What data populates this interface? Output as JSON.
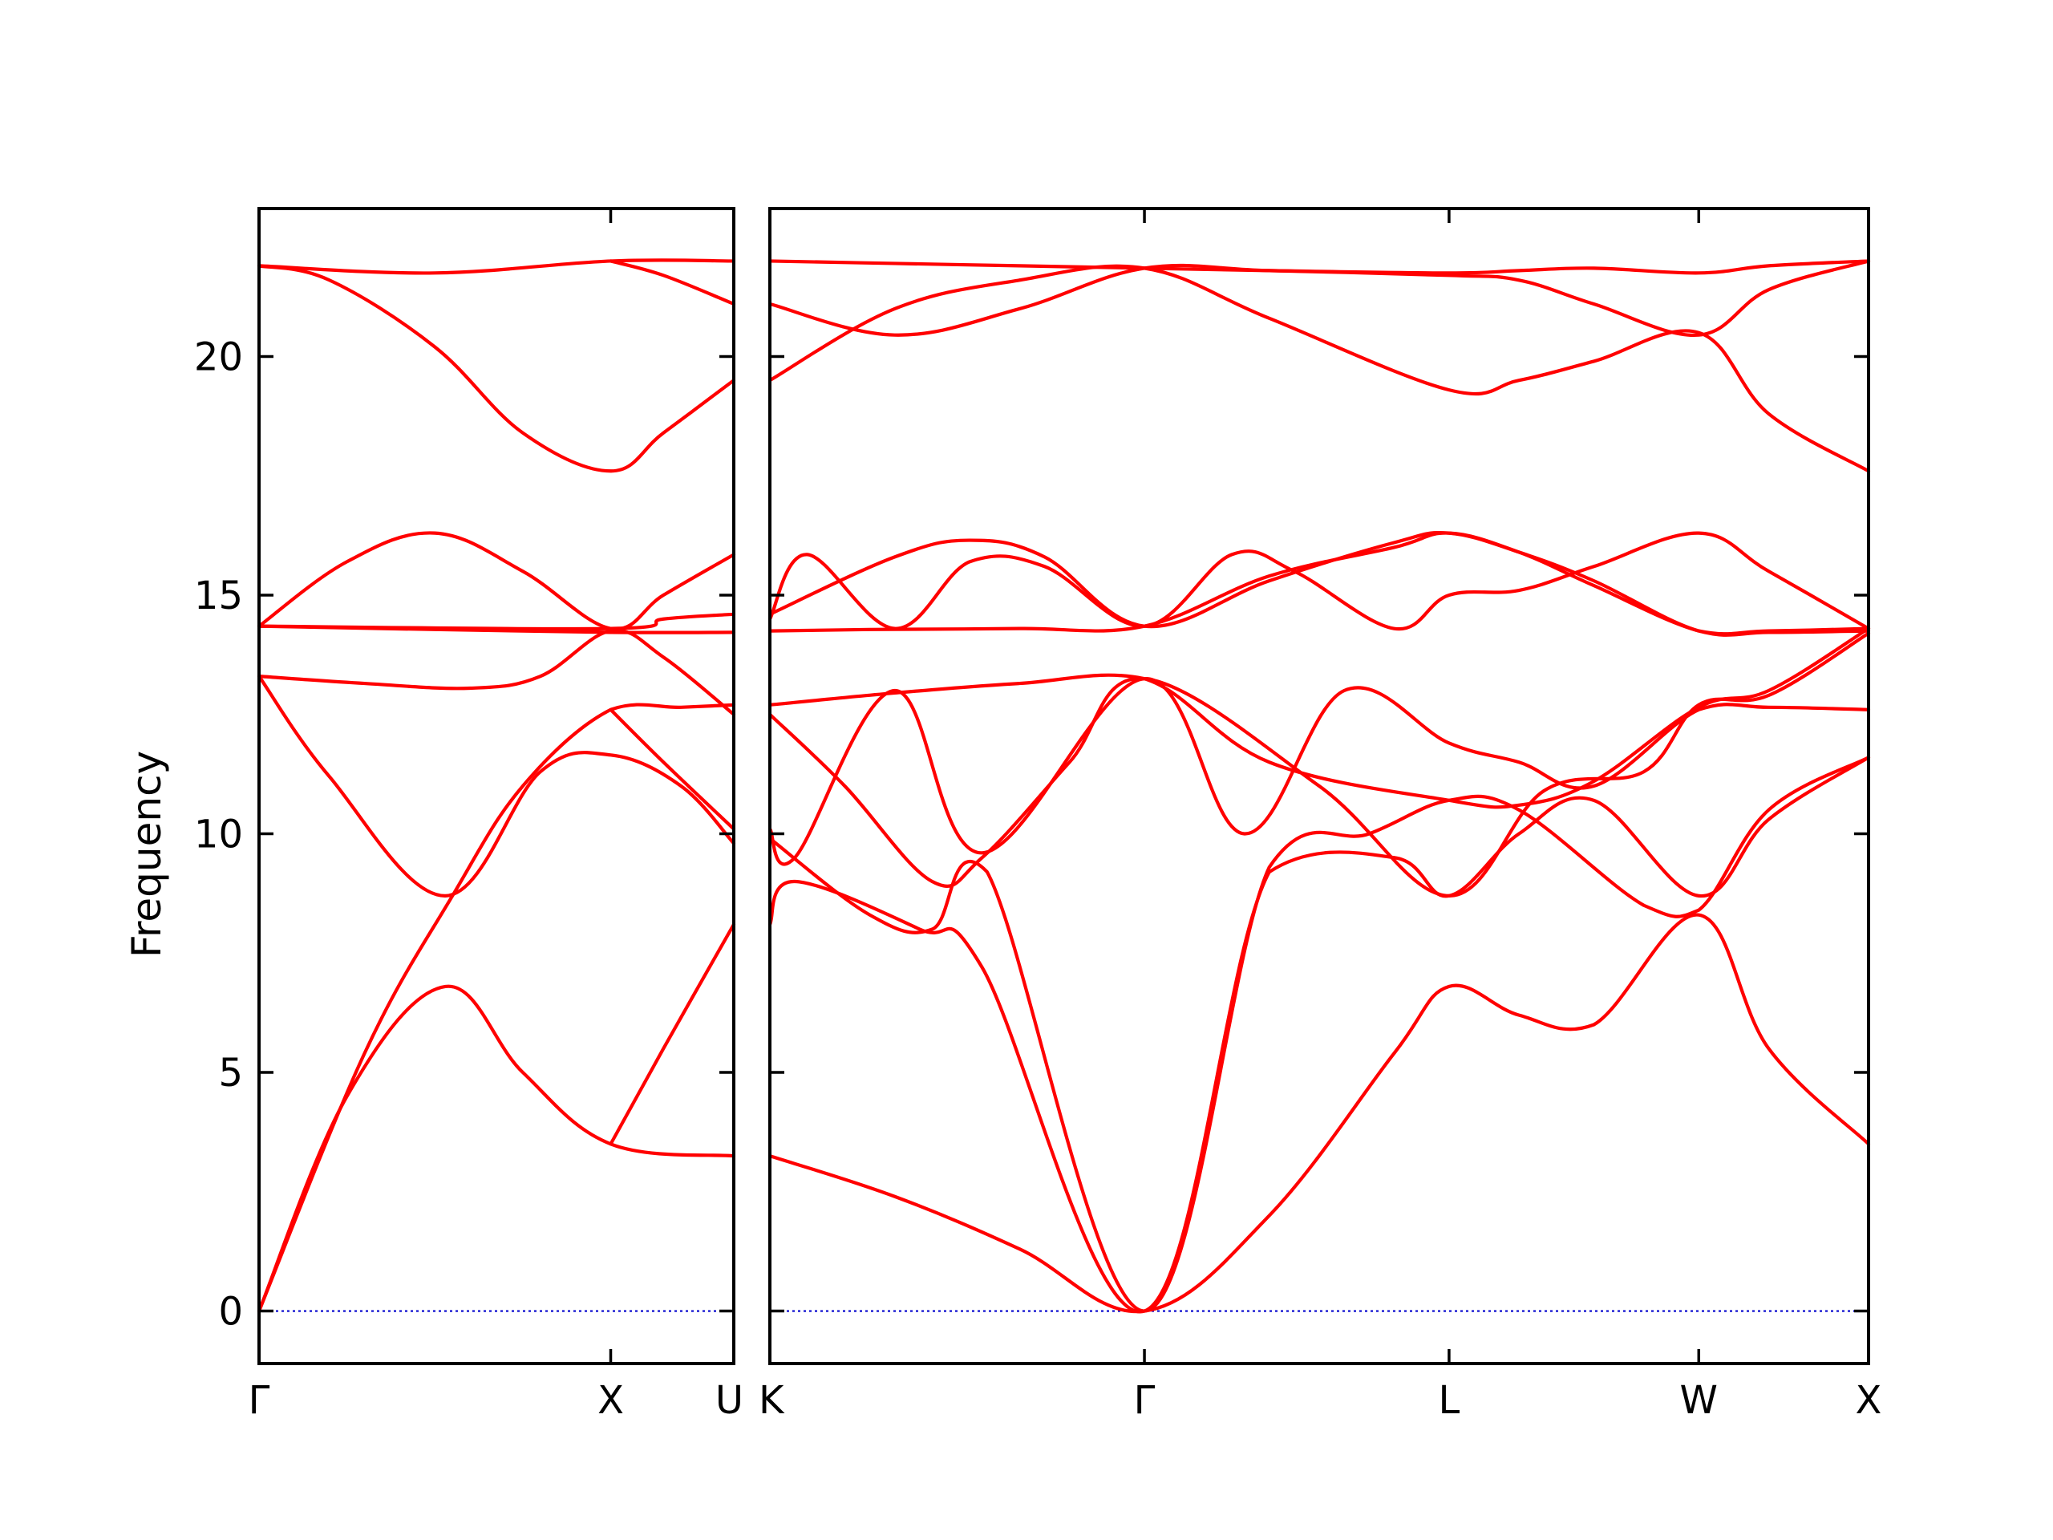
{
  "chart_data": {
    "type": "line",
    "ylabel": "Frequency",
    "ylim": [
      -1.1,
      23.1
    ],
    "yticks": [
      0,
      5,
      10,
      15,
      20
    ],
    "grid": false,
    "colors": {
      "bands": "#ff0000",
      "zero_line": "#0000cc",
      "axes": "#000000"
    },
    "panels": [
      {
        "name": "Γ-X-U",
        "xlim": [
          0,
          1.35
        ],
        "ticks": [
          {
            "x": 0,
            "label": "Γ"
          },
          {
            "x": 1.0,
            "label": "X"
          },
          {
            "x": 1.35,
            "label": "U"
          }
        ],
        "bands": [
          {
            "x": [
              0,
              0.25,
              0.53,
              0.75,
              1.0,
              1.35
            ],
            "y": [
              0,
              4.5,
              6.8,
              5.0,
              3.5,
              3.25
            ]
          },
          {
            "x": [
              0,
              0.3,
              0.55,
              0.75,
              1.0,
              1.2,
              1.35
            ],
            "y": [
              0,
              5.4,
              8.7,
              11.0,
              12.6,
              12.65,
              12.7
            ]
          },
          {
            "x": [
              0,
              0.2,
              0.53,
              0.8,
              1.0,
              1.2,
              1.35
            ],
            "y": [
              13.3,
              11.2,
              8.7,
              11.3,
              11.65,
              11.0,
              9.8
            ]
          },
          {
            "x": [
              0,
              0.3,
              0.6,
              0.8,
              1.0,
              1.15,
              1.35
            ],
            "y": [
              13.3,
              13.15,
              13.05,
              13.3,
              14.25,
              13.7,
              12.5
            ]
          },
          {
            "x": [
              0,
              0.5,
              1.0,
              1.35
            ],
            "y": [
              14.35,
              14.28,
              14.22,
              14.22
            ]
          },
          {
            "x": [
              0,
              0.25,
              0.5,
              0.75,
              1.0,
              1.15,
              1.35
            ],
            "y": [
              14.35,
              15.7,
              16.3,
              15.5,
              14.3,
              15.0,
              15.85
            ]
          },
          {
            "x": [
              0,
              0.5,
              1.0,
              1.35
            ],
            "y": [
              21.9,
              21.75,
              22.0,
              22.0
            ]
          },
          {
            "x": [
              0,
              0.2,
              0.5,
              0.75,
              1.0,
              1.15,
              1.35
            ],
            "y": [
              21.9,
              21.6,
              20.2,
              18.4,
              17.6,
              18.4,
              19.5
            ]
          },
          {
            "x": [
              0,
              1.0,
              1.15,
              1.35
            ],
            "y": [
              14.35,
              14.3,
              14.5,
              14.6
            ]
          },
          {
            "x": [
              1.0,
              1.15,
              1.35
            ],
            "y": [
              12.6,
              11.5,
              10.1
            ]
          },
          {
            "x": [
              1.0,
              1.15,
              1.35
            ],
            "y": [
              3.5,
              5.5,
              8.1
            ]
          },
          {
            "x": [
              1.0,
              1.15,
              1.35
            ],
            "y": [
              22.0,
              21.7,
              21.1
            ]
          }
        ]
      },
      {
        "name": "K-Γ-L-W-X",
        "xlim": [
          0,
          4.4
        ],
        "ticks": [
          {
            "x": 0,
            "label": "K"
          },
          {
            "x": 1.5,
            "label": "Γ"
          },
          {
            "x": 2.72,
            "label": "L"
          },
          {
            "x": 3.72,
            "label": "W"
          },
          {
            "x": 4.4,
            "label": "X"
          }
        ],
        "bands": [
          {
            "x": [
              0,
              0.5,
              1.0,
              1.5,
              2.0,
              2.5,
              2.72,
              3.0,
              3.3,
              3.72,
              4.0,
              4.4
            ],
            "y": [
              3.25,
              2.4,
              1.3,
              0,
              2.0,
              5.4,
              6.8,
              6.2,
              6.0,
              8.3,
              5.5,
              3.5
            ]
          },
          {
            "x": [
              0,
              0.1,
              0.6,
              0.85,
              1.5,
              2.0,
              2.5,
              2.72,
              3.0,
              3.3,
              3.72,
              4.0,
              4.4
            ],
            "y": [
              8.1,
              9.0,
              8.0,
              7.2,
              0,
              9.2,
              9.5,
              8.7,
              10.0,
              10.7,
              8.7,
              10.3,
              11.6
            ]
          },
          {
            "x": [
              0,
              0.4,
              0.65,
              0.87,
              1.5,
              2.0,
              2.4,
              2.72,
              3.0,
              3.5,
              3.72,
              4.0,
              4.4
            ],
            "y": [
              9.9,
              8.3,
              8.0,
              9.2,
              0,
              9.3,
              10.0,
              10.7,
              10.5,
              8.5,
              8.4,
              10.5,
              11.6
            ]
          },
          {
            "x": [
              0,
              0.1,
              0.5,
              0.85,
              1.5,
              1.9,
              2.3,
              2.72,
              3.0,
              3.3,
              3.72,
              4.0,
              4.4
            ],
            "y": [
              10.1,
              9.5,
              13.0,
              9.6,
              13.25,
              10.0,
              13.0,
              11.9,
              11.5,
              11.0,
              12.6,
              12.65,
              12.6
            ]
          },
          {
            "x": [
              0,
              0.3,
              0.65,
              0.85,
              1.2,
              1.5,
              2.2,
              2.72,
              3.1,
              3.5,
              3.72,
              4.0,
              4.4
            ],
            "y": [
              12.5,
              11.0,
              9.0,
              9.5,
              11.5,
              13.25,
              11.0,
              8.7,
              10.9,
              11.3,
              12.7,
              12.9,
              14.2
            ]
          },
          {
            "x": [
              0,
              0.5,
              1.0,
              1.5,
              2.0,
              2.72,
              3.0,
              3.3,
              3.72,
              4.0,
              4.4
            ],
            "y": [
              12.7,
              12.95,
              13.15,
              13.25,
              11.5,
              10.7,
              10.6,
              11.1,
              12.65,
              13.0,
              14.3
            ]
          },
          {
            "x": [
              0,
              0.4,
              1.0,
              1.5,
              2.0,
              2.5,
              2.72,
              3.0,
              3.3,
              3.72,
              4.0,
              4.4
            ],
            "y": [
              14.25,
              14.28,
              14.3,
              14.35,
              15.4,
              16.0,
              16.3,
              15.9,
              15.2,
              14.25,
              14.22,
              14.25
            ]
          },
          {
            "x": [
              0,
              0.15,
              0.5,
              0.8,
              1.1,
              1.5,
              1.85,
              2.1,
              2.5,
              2.72,
              3.0,
              3.3,
              3.72,
              4.0,
              4.4
            ],
            "y": [
              14.5,
              15.85,
              14.3,
              15.7,
              15.6,
              14.35,
              15.85,
              15.5,
              14.3,
              15.0,
              15.1,
              15.6,
              16.3,
              15.5,
              14.3
            ]
          },
          {
            "x": [
              0,
              0.5,
              0.8,
              1.1,
              1.5,
              2.0,
              2.5,
              2.72,
              3.0,
              3.3,
              3.72,
              4.0,
              4.4
            ],
            "y": [
              14.6,
              15.8,
              16.15,
              15.8,
              14.35,
              15.3,
              16.1,
              16.3,
              15.9,
              15.3,
              14.25,
              14.25,
              14.3
            ]
          },
          {
            "x": [
              0,
              0.5,
              1.0,
              1.5,
              2.0,
              2.72,
              3.0,
              3.3,
              3.72,
              4.0,
              4.4
            ],
            "y": [
              19.5,
              21.0,
              21.6,
              21.85,
              20.8,
              19.3,
              19.5,
              19.9,
              20.5,
              18.8,
              17.6
            ]
          },
          {
            "x": [
              0,
              0.5,
              1.0,
              1.5,
              2.0,
              2.72,
              3.0,
              3.3,
              3.72,
              4.0,
              4.4
            ],
            "y": [
              21.1,
              20.45,
              21.0,
              21.85,
              21.8,
              21.7,
              21.6,
              21.1,
              20.45,
              21.4,
              22.0
            ]
          },
          {
            "x": [
              0,
              0.5,
              1.0,
              1.5,
              2.0,
              2.72,
              3.0,
              3.3,
              3.72,
              4.0,
              4.4
            ],
            "y": [
              22.0,
              21.95,
              21.9,
              21.85,
              21.8,
              21.75,
              21.8,
              21.85,
              21.75,
              21.9,
              22.0
            ]
          }
        ]
      }
    ]
  }
}
